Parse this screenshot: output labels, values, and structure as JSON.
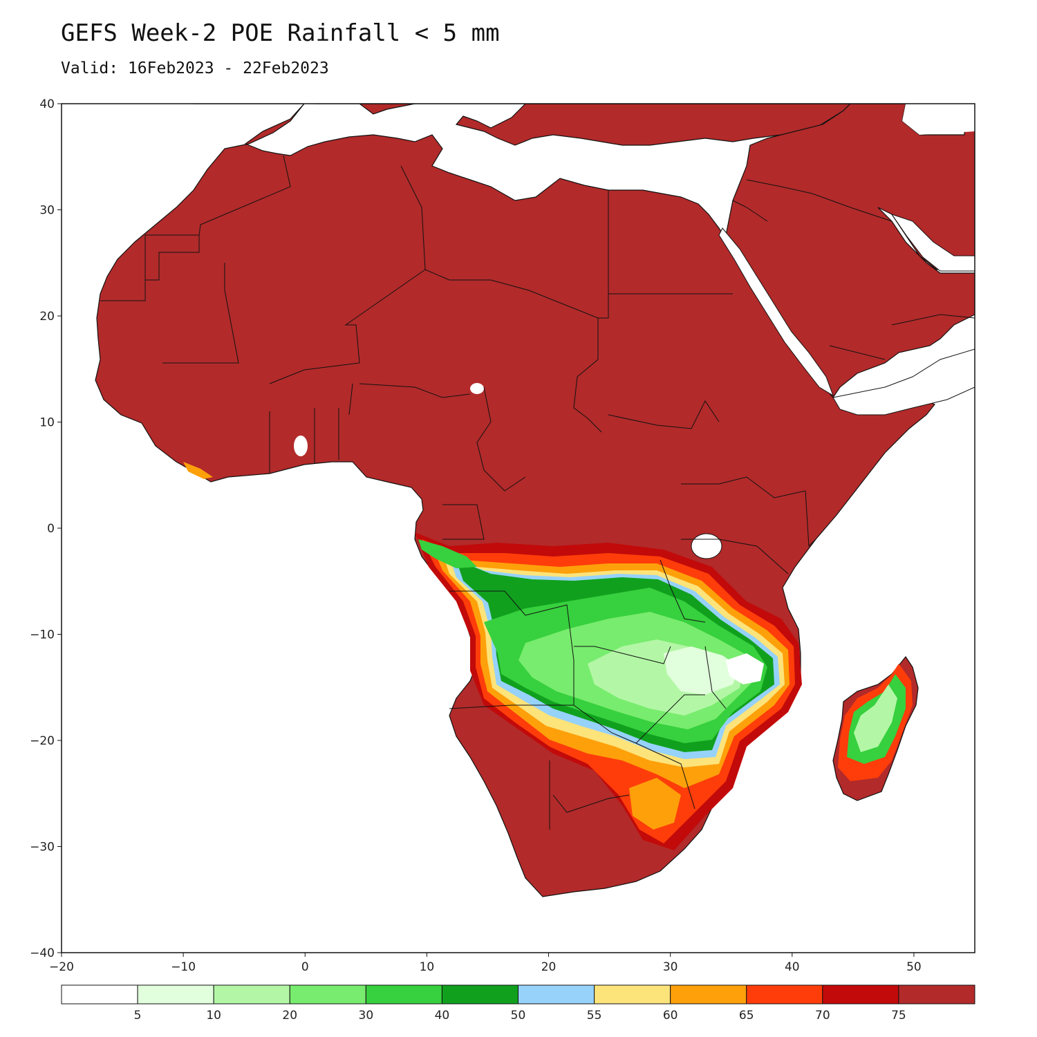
{
  "title": "GEFS Week-2 POE Rainfall < 5 mm",
  "subtitle": "Valid: 16Feb2023 - 22Feb2023",
  "map": {
    "lon_range": [
      -20,
      55
    ],
    "lat_range": [
      -40,
      40
    ],
    "lon_ticks": [
      "−20",
      "−10",
      "0",
      "10",
      "20",
      "30",
      "40",
      "50"
    ],
    "lat_ticks": [
      "40",
      "30",
      "20",
      "10",
      "0",
      "−10",
      "−20",
      "−30",
      "−40"
    ],
    "background": "#ffffff",
    "dominant_fill": "#b22a2a"
  },
  "legend": {
    "labels": [
      "5",
      "10",
      "20",
      "30",
      "40",
      "50",
      "55",
      "60",
      "65",
      "70",
      "75"
    ],
    "colors": [
      "#ffffff",
      "#e1ffdc",
      "#b3f7a6",
      "#78ec6e",
      "#37d03e",
      "#10a01e",
      "#96d2fa",
      "#fce37a",
      "#fea00a",
      "#fe3d0a",
      "#c20a0a",
      "#b22a2a"
    ]
  }
}
